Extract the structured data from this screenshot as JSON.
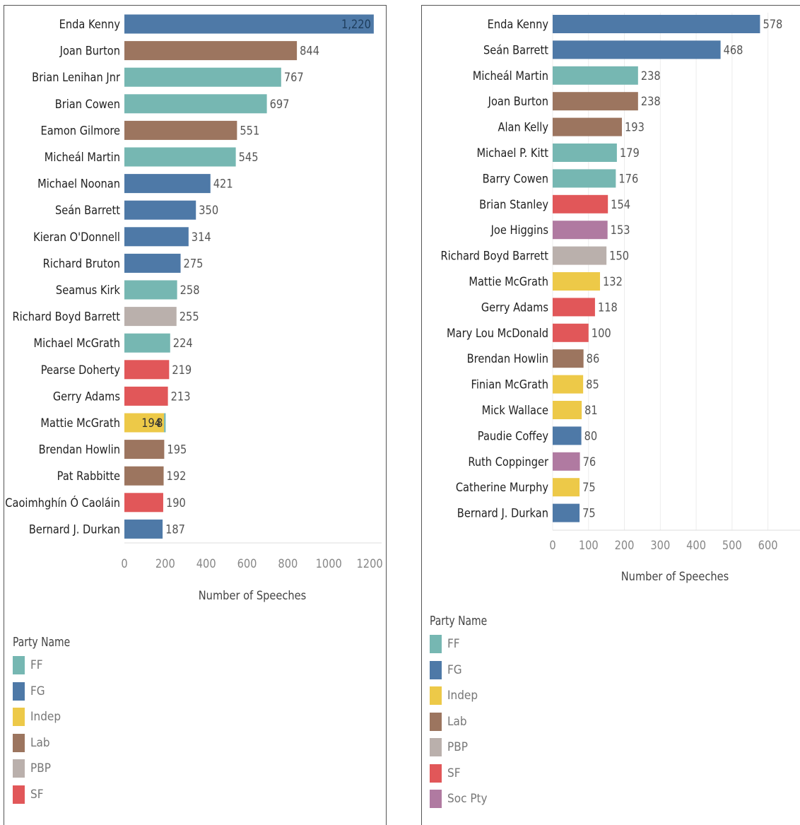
{
  "chart_data": [
    {
      "type": "bar",
      "orientation": "horizontal",
      "stacked": true,
      "xlabel": "Number of Speeches",
      "xlim": [
        0,
        1300
      ],
      "xticks": [
        0,
        200,
        400,
        600,
        800,
        1000,
        1200
      ],
      "legend": {
        "title": "Party Name",
        "position": "bottom-left",
        "entries": [
          "FF",
          "FG",
          "Indep",
          "Lab",
          "PBP",
          "SF"
        ]
      },
      "bars": [
        {
          "name": "Enda Kenny",
          "total": "1,220",
          "segments": [
            {
              "party": "FG",
              "value": 1220
            }
          ],
          "label_inside": true
        },
        {
          "name": "Joan Burton",
          "total": "844",
          "segments": [
            {
              "party": "Lab",
              "value": 844
            }
          ]
        },
        {
          "name": "Brian Lenihan Jnr",
          "total": "767",
          "segments": [
            {
              "party": "FF",
              "value": 767
            }
          ]
        },
        {
          "name": "Brian Cowen",
          "total": "697",
          "segments": [
            {
              "party": "FF",
              "value": 697
            }
          ]
        },
        {
          "name": "Eamon Gilmore",
          "total": "551",
          "segments": [
            {
              "party": "Lab",
              "value": 551
            }
          ]
        },
        {
          "name": "Micheál Martin",
          "total": "545",
          "segments": [
            {
              "party": "FF",
              "value": 545
            }
          ]
        },
        {
          "name": "Michael Noonan",
          "total": "421",
          "segments": [
            {
              "party": "FG",
              "value": 421
            }
          ]
        },
        {
          "name": "Seán Barrett",
          "total": "350",
          "segments": [
            {
              "party": "FG",
              "value": 350
            }
          ]
        },
        {
          "name": "Kieran O'Donnell",
          "total": "314",
          "segments": [
            {
              "party": "FG",
              "value": 314
            }
          ]
        },
        {
          "name": "Richard Bruton",
          "total": "275",
          "segments": [
            {
              "party": "FG",
              "value": 275
            }
          ]
        },
        {
          "name": "Seamus Kirk",
          "total": "258",
          "segments": [
            {
              "party": "FF",
              "value": 258
            }
          ]
        },
        {
          "name": "Richard Boyd Barrett",
          "total": "255",
          "segments": [
            {
              "party": "PBP",
              "value": 255
            }
          ]
        },
        {
          "name": "Michael McGrath",
          "total": "224",
          "segments": [
            {
              "party": "FF",
              "value": 224
            }
          ]
        },
        {
          "name": "Pearse Doherty",
          "total": "219",
          "segments": [
            {
              "party": "SF",
              "value": 219
            }
          ]
        },
        {
          "name": "Gerry Adams",
          "total": "213",
          "segments": [
            {
              "party": "SF",
              "value": 213
            }
          ]
        },
        {
          "name": "Mattie McGrath",
          "total": "",
          "segments": [
            {
              "party": "Indep",
              "value": 194,
              "label": "194"
            },
            {
              "party": "FF",
              "value": 8,
              "label": "8"
            }
          ]
        },
        {
          "name": "Brendan Howlin",
          "total": "195",
          "segments": [
            {
              "party": "Lab",
              "value": 195
            }
          ]
        },
        {
          "name": "Pat Rabbitte",
          "total": "192",
          "segments": [
            {
              "party": "Lab",
              "value": 192
            }
          ]
        },
        {
          "name": "Caoimhghín Ó Caoláin",
          "total": "190",
          "segments": [
            {
              "party": "SF",
              "value": 190
            }
          ]
        },
        {
          "name": "Bernard J. Durkan",
          "total": "187",
          "segments": [
            {
              "party": "FG",
              "value": 187
            }
          ]
        }
      ]
    },
    {
      "type": "bar",
      "orientation": "horizontal",
      "xlabel": "Number of Speeches",
      "xlim": [
        0,
        650
      ],
      "xticks": [
        0,
        100,
        200,
        300,
        400,
        500,
        600
      ],
      "grid": true,
      "legend": {
        "title": "Party Name",
        "position": "bottom-left",
        "entries": [
          "FF",
          "FG",
          "Indep",
          "Lab",
          "PBP",
          "SF",
          "Soc Pty"
        ]
      },
      "bars": [
        {
          "name": "Enda Kenny",
          "total": "578",
          "segments": [
            {
              "party": "FG",
              "value": 578
            }
          ]
        },
        {
          "name": "Seán Barrett",
          "total": "468",
          "segments": [
            {
              "party": "FG",
              "value": 468
            }
          ]
        },
        {
          "name": "Micheál Martin",
          "total": "238",
          "segments": [
            {
              "party": "FF",
              "value": 238
            }
          ]
        },
        {
          "name": "Joan Burton",
          "total": "238",
          "segments": [
            {
              "party": "Lab",
              "value": 238
            }
          ]
        },
        {
          "name": "Alan Kelly",
          "total": "193",
          "segments": [
            {
              "party": "Lab",
              "value": 193
            }
          ]
        },
        {
          "name": "Michael P. Kitt",
          "total": "179",
          "segments": [
            {
              "party": "FF",
              "value": 179
            }
          ]
        },
        {
          "name": "Barry Cowen",
          "total": "176",
          "segments": [
            {
              "party": "FF",
              "value": 176
            }
          ]
        },
        {
          "name": "Brian Stanley",
          "total": "154",
          "segments": [
            {
              "party": "SF",
              "value": 154
            }
          ]
        },
        {
          "name": "Joe Higgins",
          "total": "153",
          "segments": [
            {
              "party": "Soc Pty",
              "value": 153
            }
          ]
        },
        {
          "name": "Richard Boyd Barrett",
          "total": "150",
          "segments": [
            {
              "party": "PBP",
              "value": 150
            }
          ]
        },
        {
          "name": "Mattie McGrath",
          "total": "132",
          "segments": [
            {
              "party": "Indep",
              "value": 132
            }
          ]
        },
        {
          "name": "Gerry Adams",
          "total": "118",
          "segments": [
            {
              "party": "SF",
              "value": 118
            }
          ]
        },
        {
          "name": "Mary Lou McDonald",
          "total": "100",
          "segments": [
            {
              "party": "SF",
              "value": 100
            }
          ]
        },
        {
          "name": "Brendan Howlin",
          "total": "86",
          "segments": [
            {
              "party": "Lab",
              "value": 86
            }
          ]
        },
        {
          "name": "Finian McGrath",
          "total": "85",
          "segments": [
            {
              "party": "Indep",
              "value": 85
            }
          ]
        },
        {
          "name": "Mick Wallace",
          "total": "81",
          "segments": [
            {
              "party": "Indep",
              "value": 81
            }
          ]
        },
        {
          "name": "Paudie Coffey",
          "total": "80",
          "segments": [
            {
              "party": "FG",
              "value": 80
            }
          ]
        },
        {
          "name": "Ruth Coppinger",
          "total": "76",
          "segments": [
            {
              "party": "Soc Pty",
              "value": 76
            }
          ]
        },
        {
          "name": "Catherine Murphy",
          "total": "75",
          "segments": [
            {
              "party": "Indep",
              "value": 75
            }
          ]
        },
        {
          "name": "Bernard J. Durkan",
          "total": "75",
          "segments": [
            {
              "party": "FG",
              "value": 75
            }
          ]
        }
      ]
    }
  ],
  "party_colors": {
    "FF": "#76b7b2",
    "FG": "#4e79a7",
    "Indep": "#edc948",
    "Lab": "#9c755f",
    "PBP": "#bab0ac",
    "SF": "#e15759",
    "Soc Pty": "#b07aa1"
  }
}
